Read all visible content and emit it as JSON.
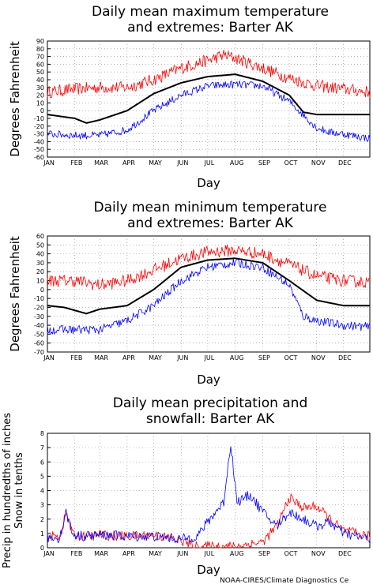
{
  "chart_data": [
    {
      "type": "line",
      "title": "Daily mean maximum temperature\nand extremes: Barter AK",
      "xlabel": "Day",
      "ylabel": "Degrees Fahrenheit",
      "ylim": [
        -60,
        90
      ],
      "yticks": [
        90,
        80,
        70,
        60,
        50,
        40,
        30,
        20,
        10,
        0,
        -10,
        -20,
        -30,
        -40,
        -50,
        -60
      ],
      "xticklabels": [
        "JAN",
        "FEB",
        "MAR",
        "APR",
        "MAY",
        "JUN",
        "JUL",
        "AUG",
        "SEP",
        "OCT",
        "NOV",
        "DEC"
      ],
      "grid": true,
      "series": [
        {
          "name": "",
          "color": "#ff0000",
          "days": [
            1,
            32,
            60,
            91,
            121,
            152,
            182,
            200,
            213,
            244,
            274,
            305,
            335,
            365
          ],
          "values": [
            24,
            28,
            30,
            30,
            40,
            55,
            65,
            72,
            68,
            55,
            42,
            32,
            28,
            24
          ],
          "noise": 8
        },
        {
          "name": "",
          "color": "#000000",
          "days": [
            1,
            32,
            45,
            60,
            91,
            121,
            152,
            182,
            213,
            244,
            274,
            290,
            305,
            335,
            365
          ],
          "values": [
            -5,
            -10,
            -16,
            -12,
            0,
            22,
            36,
            44,
            47,
            38,
            20,
            -2,
            -5,
            -5,
            -5
          ],
          "noise": 0
        },
        {
          "name": "",
          "color": "#0000ff",
          "days": [
            1,
            32,
            60,
            91,
            121,
            152,
            182,
            213,
            244,
            274,
            305,
            320,
            335,
            365
          ],
          "values": [
            -30,
            -32,
            -32,
            -25,
            0,
            20,
            32,
            34,
            32,
            12,
            -22,
            -28,
            -30,
            -36
          ],
          "noise": 5
        }
      ]
    },
    {
      "type": "line",
      "title": "Daily mean minimum temperature\nand extremes: Barter AK",
      "xlabel": "Day",
      "ylabel": "Degrees Fahrenheit",
      "ylim": [
        -70,
        60
      ],
      "yticks": [
        60,
        50,
        40,
        30,
        20,
        10,
        0,
        -10,
        -20,
        -30,
        -40,
        -50,
        -60,
        -70
      ],
      "xticklabels": [
        "JAN",
        "FEB",
        "MAR",
        "APR",
        "MAY",
        "JUN",
        "JUL",
        "AUG",
        "SEP",
        "OCT",
        "NOV",
        "DEC"
      ],
      "grid": true,
      "series": [
        {
          "name": "",
          "color": "#ff0000",
          "days": [
            1,
            32,
            60,
            91,
            121,
            152,
            182,
            213,
            244,
            274,
            305,
            335,
            365
          ],
          "values": [
            10,
            10,
            5,
            10,
            22,
            35,
            42,
            44,
            40,
            28,
            15,
            10,
            8
          ],
          "noise": 7
        },
        {
          "name": "",
          "color": "#000000",
          "days": [
            1,
            20,
            45,
            60,
            91,
            121,
            152,
            182,
            213,
            244,
            274,
            305,
            335,
            365
          ],
          "values": [
            -18,
            -20,
            -27,
            -22,
            -18,
            0,
            25,
            33,
            35,
            30,
            10,
            -12,
            -18,
            -18
          ],
          "noise": 0
        },
        {
          "name": "",
          "color": "#0000ff",
          "days": [
            1,
            32,
            60,
            91,
            121,
            152,
            182,
            213,
            244,
            274,
            290,
            305,
            335,
            365
          ],
          "values": [
            -45,
            -45,
            -45,
            -35,
            -18,
            10,
            25,
            30,
            25,
            5,
            -30,
            -35,
            -40,
            -42
          ],
          "noise": 5
        }
      ]
    },
    {
      "type": "line",
      "title": "Daily mean precipitation and\nsnowfall: Barter AK",
      "xlabel": "Day",
      "ylabel": "Precip in hundredths of inches\nSnow in tenths",
      "ylim": [
        0,
        8
      ],
      "yticks": [
        8,
        7,
        6,
        5,
        4,
        3,
        2,
        1,
        0
      ],
      "xticklabels": [
        "JAN",
        "FEB",
        "MAR",
        "APR",
        "MAY",
        "JUN",
        "JUL",
        "AUG",
        "SEP",
        "OCT",
        "NOV",
        "DEC"
      ],
      "grid": true,
      "series": [
        {
          "name": "",
          "color": "#ff0000",
          "days": [
            1,
            15,
            22,
            30,
            45,
            60,
            91,
            121,
            152,
            165,
            182,
            213,
            244,
            260,
            274,
            290,
            305,
            320,
            335,
            365
          ],
          "values": [
            0.8,
            0.8,
            2.4,
            0.9,
            0.8,
            0.9,
            0.8,
            0.9,
            0.5,
            0.1,
            0.1,
            0.1,
            0.4,
            1.5,
            3.5,
            2.8,
            2.9,
            2.0,
            1.2,
            0.8
          ],
          "noise": 0.35
        },
        {
          "name": "",
          "color": "#0000ff",
          "days": [
            1,
            15,
            22,
            30,
            45,
            60,
            91,
            121,
            152,
            170,
            182,
            200,
            208,
            215,
            230,
            244,
            260,
            274,
            290,
            305,
            320,
            335,
            365
          ],
          "values": [
            0.7,
            0.7,
            2.5,
            0.9,
            0.8,
            0.9,
            0.8,
            0.8,
            0.6,
            0.8,
            1.8,
            3.2,
            7.3,
            3.2,
            3.7,
            2.5,
            1.5,
            2.5,
            2.0,
            1.5,
            1.8,
            1.0,
            0.6
          ],
          "noise": 0.35
        }
      ]
    }
  ],
  "footer": "NOAA-CIRES/Climate Diagnostics Ce"
}
